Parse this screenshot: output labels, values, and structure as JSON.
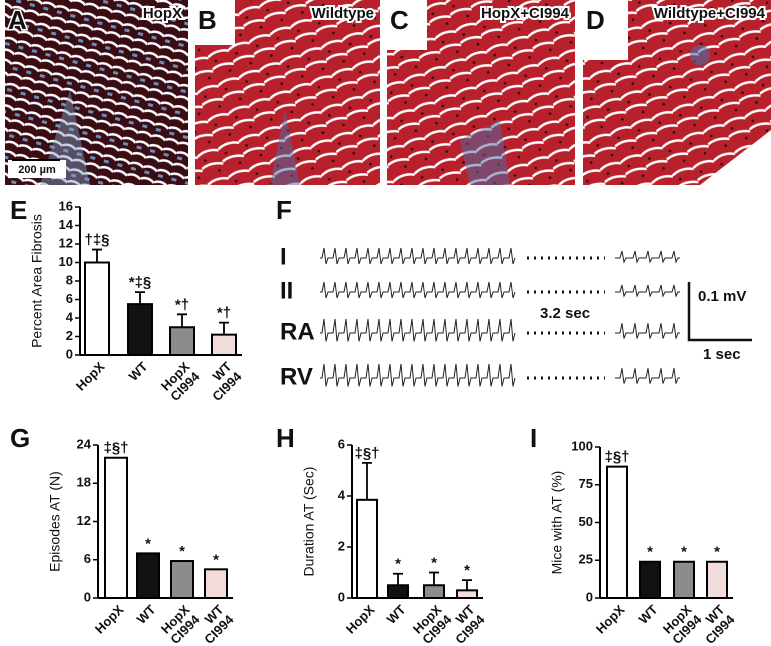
{
  "panels": [
    {
      "label": "A",
      "title": "HopX"
    },
    {
      "label": "B",
      "title": "Wildtype"
    },
    {
      "label": "C",
      "title": "HopX+CI994"
    },
    {
      "label": "D",
      "title": "Wildtype+CI994"
    }
  ],
  "scale_bar": "200 µm",
  "ecg": {
    "label": "F",
    "leads": [
      "I",
      "II",
      "RA",
      "RV"
    ],
    "gap": "3.2 sec",
    "amplitude": "0.1 mV",
    "time": "1 sec"
  },
  "chart_data": [
    {
      "type": "bar",
      "label": "E",
      "y_label": "Percent Area Fibrosis",
      "categories": [
        [
          "HopX"
        ],
        [
          "WT"
        ],
        [
          "HopX",
          "CI994"
        ],
        [
          "WT",
          "CI994"
        ]
      ],
      "values": [
        10,
        5.5,
        3,
        2.2
      ],
      "errors": [
        1.4,
        1.3,
        1.4,
        1.3
      ],
      "annotations": [
        "†‡§",
        "*‡§",
        "*†",
        "*†"
      ],
      "colors": [
        "#ffffff",
        "#111111",
        "#8c8c8c",
        "#f3dcdc"
      ],
      "ylim": [
        0,
        16
      ],
      "yticks": [
        0,
        2,
        4,
        6,
        8,
        10,
        12,
        14,
        16
      ]
    },
    {
      "type": "bar",
      "label": "G",
      "y_label": "Episodes AT (N)",
      "categories": [
        [
          "HopX"
        ],
        [
          "WT"
        ],
        [
          "HopX",
          "CI994"
        ],
        [
          "WT",
          "CI994"
        ]
      ],
      "values": [
        22,
        7,
        5.8,
        4.5
      ],
      "annotations": [
        "‡§†",
        "*",
        "*",
        "*"
      ],
      "colors": [
        "#ffffff",
        "#111111",
        "#8c8c8c",
        "#f3dcdc"
      ],
      "ylim": [
        0,
        24
      ],
      "yticks": [
        0,
        6,
        12,
        18,
        24
      ]
    },
    {
      "type": "bar",
      "label": "H",
      "y_label": "Duration AT (Sec)",
      "categories": [
        [
          "HopX"
        ],
        [
          "WT"
        ],
        [
          "HopX",
          "CI994"
        ],
        [
          "WT",
          "CI994"
        ]
      ],
      "values": [
        3.85,
        0.5,
        0.5,
        0.3
      ],
      "errors": [
        1.45,
        0.45,
        0.5,
        0.4
      ],
      "annotations": [
        "‡§†",
        "*",
        "*",
        "*"
      ],
      "colors": [
        "#ffffff",
        "#111111",
        "#8c8c8c",
        "#f3dcdc"
      ],
      "ylim": [
        0,
        6
      ],
      "yticks": [
        0,
        2,
        4,
        6
      ]
    },
    {
      "type": "bar",
      "label": "I",
      "y_label": "Mice with AT (%)",
      "categories": [
        [
          "HopX"
        ],
        [
          "WT"
        ],
        [
          "HopX",
          "CI994"
        ],
        [
          "WT",
          "CI994"
        ]
      ],
      "values": [
        87,
        24,
        24,
        24
      ],
      "annotations": [
        "‡§†",
        "*",
        "*",
        "*"
      ],
      "colors": [
        "#ffffff",
        "#111111",
        "#8c8c8c",
        "#f3dcdc"
      ],
      "ylim": [
        0,
        100
      ],
      "yticks": [
        0,
        25,
        50,
        75,
        100
      ]
    }
  ]
}
